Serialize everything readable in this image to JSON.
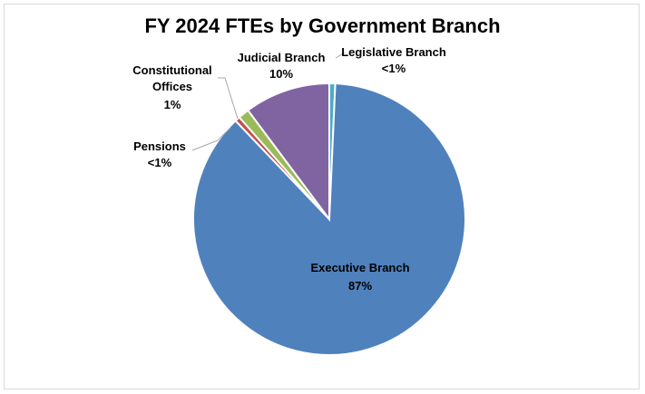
{
  "chart_data": {
    "type": "pie",
    "title": "FY 2024 FTEs by Government Branch",
    "slices": [
      {
        "name": "Legislative Branch",
        "display": "<1%",
        "value": 0.7,
        "color": "#4bacc6"
      },
      {
        "name": "Executive Branch",
        "display": "87%",
        "value": 87.2,
        "color": "#4f81bd"
      },
      {
        "name": "Pensions",
        "display": "<1%",
        "value": 0.6,
        "color": "#c0504d"
      },
      {
        "name": "Constitutional Offices",
        "display": "1%",
        "value": 1.3,
        "color": "#9bbb59"
      },
      {
        "name": "Judicial Branch",
        "display": "10%",
        "value": 10.2,
        "color": "#8064a2"
      }
    ],
    "start_angle_deg": 0,
    "direction": "clockwise",
    "legend": "none"
  }
}
